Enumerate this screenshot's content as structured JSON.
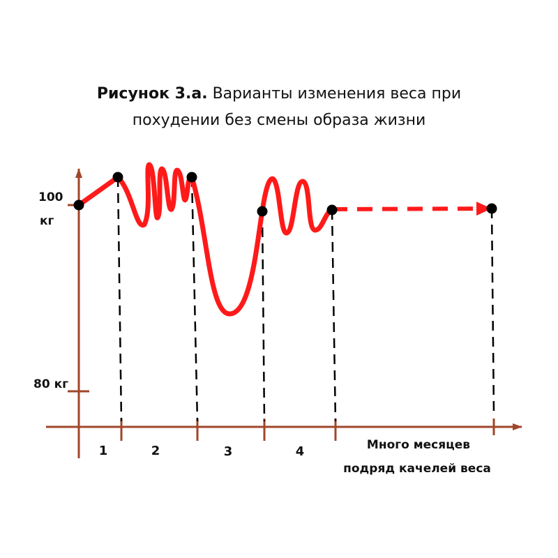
{
  "title": {
    "bold": "Рисунок 3.а.",
    "line1": "Варианты изменения веса при",
    "line2": "похудении без смены образа жизни"
  },
  "chart_data": {
    "type": "line",
    "title": "Рисунок 3.а. Варианты изменения веса при похудении без смены образа жизни",
    "y_ticks": [
      {
        "value": 100,
        "label_top": "100",
        "label_bottom": "кг"
      },
      {
        "value": 80,
        "label": "80 кг"
      }
    ],
    "x_segments": [
      "1",
      "2",
      "3",
      "4"
    ],
    "x_tail_label": [
      "Много месяцев",
      "подряд качелей веса"
    ],
    "points": [
      {
        "label": "start",
        "weight": 100
      },
      {
        "label": "end of 1",
        "weight": 103
      },
      {
        "label": "end of 2",
        "weight": 103
      },
      {
        "label": "end of 3",
        "weight": 99.5
      },
      {
        "label": "end of 4",
        "weight": 100
      },
      {
        "label": "end",
        "weight": 100
      }
    ],
    "grid": false,
    "legend": "none",
    "line_color": "#ff1a1a",
    "axis_color": "#a0462a",
    "marker_color": "#000000"
  }
}
